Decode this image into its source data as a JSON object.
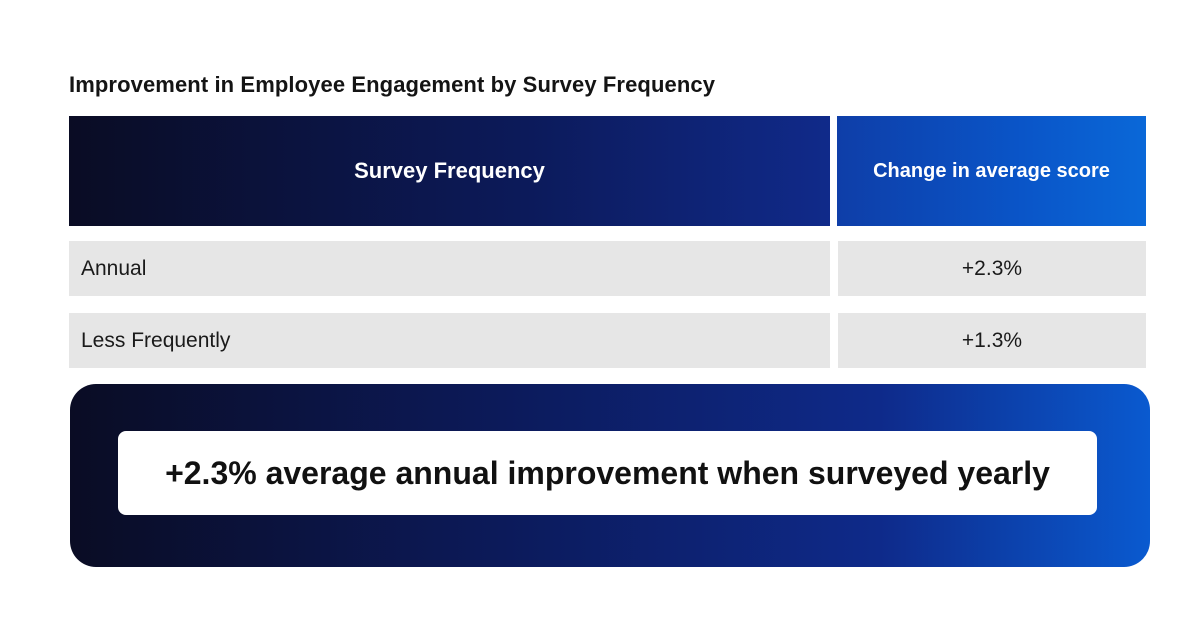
{
  "chart_data": {
    "type": "table",
    "title": "Improvement in Employee Engagement by Survey Frequency",
    "columns": [
      "Survey Frequency",
      "Change in average score"
    ],
    "rows": [
      {
        "frequency": "Annual",
        "change": "+2.3%"
      },
      {
        "frequency": "Less Frequently",
        "change": "+1.3%"
      }
    ],
    "values": [
      2.3,
      1.3
    ],
    "categories": [
      "Annual",
      "Less Frequently"
    ]
  },
  "callout": {
    "text": "+2.3% average annual improvement when surveyed yearly"
  },
  "colors": {
    "header_dark": "#0a0c24",
    "header_blue": "#0a68d8",
    "row_bg": "#e6e6e6",
    "text": "#141414"
  }
}
